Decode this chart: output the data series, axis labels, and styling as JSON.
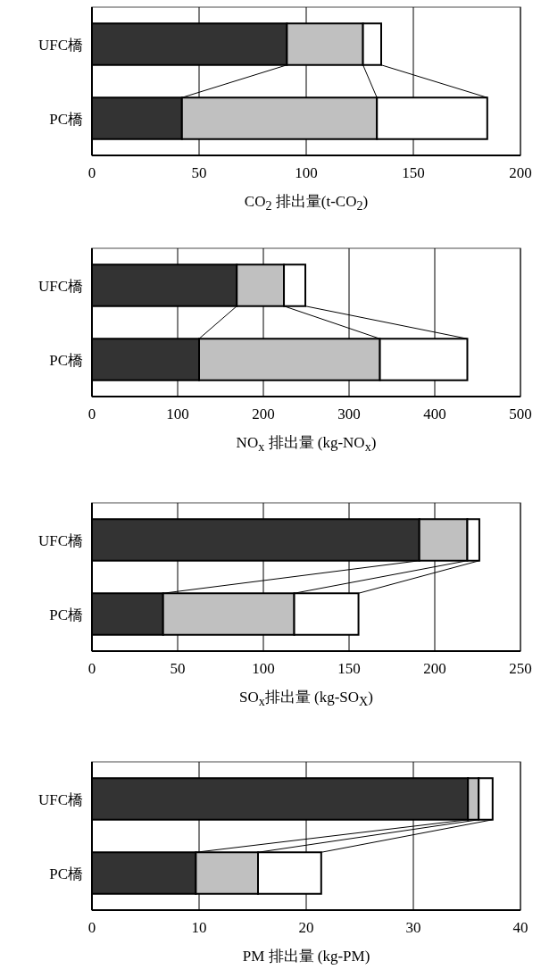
{
  "chart_data": [
    {
      "type": "bar",
      "orientation": "horizontal",
      "stacked": true,
      "categories": [
        "UFC橋",
        "PC橋"
      ],
      "xlabel": "CO$_{2}$ 排出量(t-CO$_{2}$)",
      "xlim": [
        0,
        200
      ],
      "xticks": [
        0,
        50,
        100,
        150,
        200
      ],
      "grid": "x",
      "series": [
        {
          "color": "#333333",
          "values": [
            91,
            42
          ]
        },
        {
          "color": "#c0c0c0",
          "values": [
            35.5,
            91
          ]
        },
        {
          "color": "#ffffff",
          "values": [
            8.5,
            51.5
          ]
        }
      ]
    },
    {
      "type": "bar",
      "orientation": "horizontal",
      "stacked": true,
      "categories": [
        "UFC橋",
        "PC橋"
      ],
      "xlabel": "NO$_{x}$ 排出量 (kg-NO$_{x}$)",
      "xlim": [
        0,
        500
      ],
      "xticks": [
        0,
        100,
        200,
        300,
        400,
        500
      ],
      "grid": "x",
      "series": [
        {
          "color": "#333333",
          "values": [
            169,
            125
          ]
        },
        {
          "color": "#c0c0c0",
          "values": [
            55,
            211
          ]
        },
        {
          "color": "#ffffff",
          "values": [
            25,
            102
          ]
        }
      ]
    },
    {
      "type": "bar",
      "orientation": "horizontal",
      "stacked": true,
      "categories": [
        "UFC橋",
        "PC橋"
      ],
      "xlabel": "SO$_{x}$排出量 (kg-SO$_{X}$)",
      "xlim": [
        0,
        250
      ],
      "xticks": [
        0,
        50,
        100,
        150,
        200,
        250
      ],
      "grid": "x",
      "series": [
        {
          "color": "#333333",
          "values": [
            191,
            41.5
          ]
        },
        {
          "color": "#c0c0c0",
          "values": [
            28,
            76.5
          ]
        },
        {
          "color": "#ffffff",
          "values": [
            7,
            37.5
          ]
        }
      ]
    },
    {
      "type": "bar",
      "orientation": "horizontal",
      "stacked": true,
      "categories": [
        "UFC橋",
        "PC橋"
      ],
      "xlabel": "PM 排出量 (kg-PM)",
      "xlim": [
        0,
        40
      ],
      "xticks": [
        0,
        10,
        20,
        30,
        40
      ],
      "grid": "x",
      "series": [
        {
          "color": "#333333",
          "values": [
            35.1,
            9.7
          ]
        },
        {
          "color": "#c0c0c0",
          "values": [
            1.0,
            5.8
          ]
        },
        {
          "color": "#ffffff",
          "values": [
            1.3,
            5.9
          ]
        }
      ]
    }
  ]
}
